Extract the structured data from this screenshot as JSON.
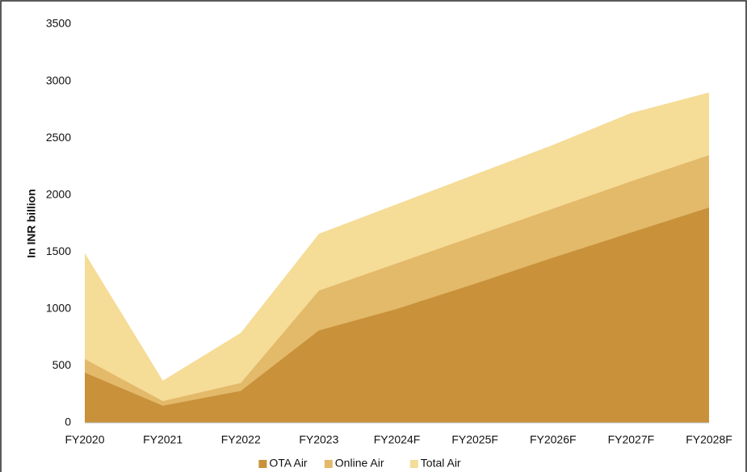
{
  "chart_data": {
    "type": "area",
    "y_label": "In INR billion",
    "categories": [
      "FY2020",
      "FY2021",
      "FY2022",
      "FY2023",
      "FY2024F",
      "FY2025F",
      "FY2026F",
      "FY2027F",
      "FY2028F"
    ],
    "series": [
      {
        "name": "OTA Air",
        "color": "#c8913a",
        "values": [
          440,
          150,
          280,
          810,
          1000,
          1220,
          1450,
          1670,
          1890
        ]
      },
      {
        "name": "Online Air",
        "color": "#e3b96a",
        "values": [
          560,
          190,
          350,
          1160,
          1400,
          1640,
          1880,
          2120,
          2350
        ]
      },
      {
        "name": "Total Air",
        "color": "#f5dc97",
        "values": [
          1490,
          370,
          790,
          1660,
          1920,
          2180,
          2440,
          2720,
          2900
        ]
      }
    ],
    "ylim": [
      0,
      3500
    ],
    "yticks": [
      0,
      500,
      1000,
      1500,
      2000,
      2500,
      3000,
      3500
    ],
    "grid": false,
    "legend": "bottom"
  }
}
